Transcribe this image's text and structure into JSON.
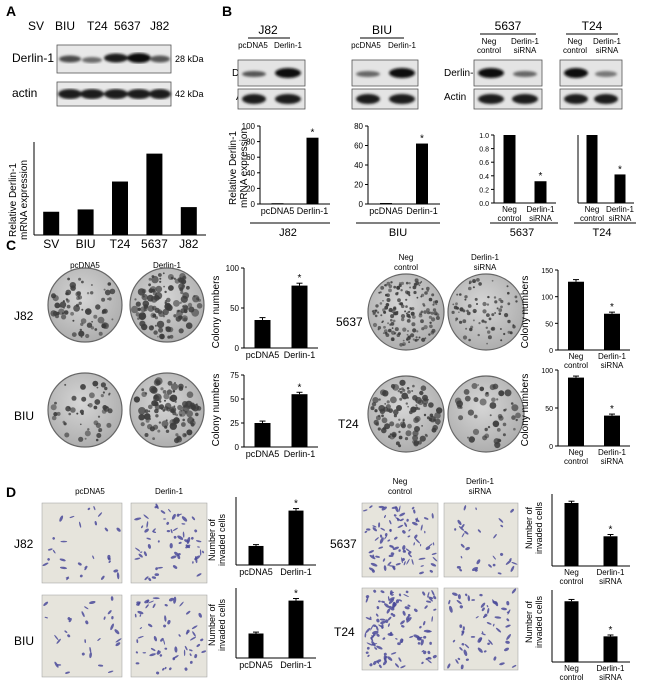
{
  "panels": {
    "A": {
      "label": "A",
      "lanes": [
        "SV",
        "BIU",
        "T24",
        "5637",
        "J82"
      ],
      "blot_rows": [
        "Derlin-1",
        "actin"
      ],
      "mw": [
        "28 kDa",
        "42 kDa"
      ],
      "ylabel": [
        "Relative Derlin-1",
        "mRNA  expression"
      ]
    },
    "B": {
      "label": "B",
      "groups": [
        {
          "name": "J82",
          "lanes": [
            "pcDNA5",
            "Derlin-1"
          ]
        },
        {
          "name": "BIU",
          "lanes": [
            "pcDNA5",
            "Derlin-1"
          ]
        },
        {
          "name": "5637",
          "lanes": [
            "Neg\ncontrol",
            "Derlin-1\nsiRNA"
          ]
        },
        {
          "name": "T24",
          "lanes": [
            "Neg\ncontrol",
            "Derlin-1\nsiRNA"
          ]
        }
      ],
      "blot_rows": [
        "Derlin-1",
        "Actin"
      ],
      "ylabel": [
        "Relative Derlin-1",
        "mRNA  expression"
      ]
    },
    "C": {
      "label": "C",
      "rows_left": [
        "J82",
        "BIU"
      ],
      "rows_right": [
        "5637",
        "T24"
      ],
      "cols_left": [
        "pcDNA5",
        "Derlin-1"
      ],
      "cols_right": [
        [
          "Neg",
          "control"
        ],
        [
          "Derlin-1",
          "siRNA"
        ]
      ],
      "ylabel": "Colony numbers"
    },
    "D": {
      "label": "D",
      "rows_left": [
        "J82",
        "BIU"
      ],
      "rows_right": [
        "5637",
        "T24"
      ],
      "cols_left": [
        "pcDNA5",
        "Derlin-1"
      ],
      "cols_right": [
        [
          "Neg",
          "control"
        ],
        [
          "Derlin-1",
          "siRNA"
        ]
      ],
      "ylabel": [
        "Number of",
        "invaded cells"
      ]
    }
  },
  "sig_marker": "*",
  "colors": {
    "bar": "#000000",
    "well": "#bdbdbd",
    "colony": "#3c3c3c",
    "cell": "#4a4a9a",
    "invasion_bg": "#e6e4dc"
  },
  "chart_data": [
    {
      "id": "A-qpcr",
      "type": "bar",
      "categories": [
        "SV",
        "BIU",
        "T24",
        "5637",
        "J82"
      ],
      "values": [
        1.0,
        1.1,
        2.3,
        3.5,
        1.2
      ],
      "ylim": [
        0,
        4
      ],
      "ylabel": "Relative Derlin-1 mRNA  expression"
    },
    {
      "id": "B-J82",
      "type": "bar",
      "categories": [
        "pcDNA5",
        "Derlin-1"
      ],
      "values": [
        1,
        85
      ],
      "ylim": [
        0,
        100
      ],
      "yticks": [
        0,
        20,
        40,
        60,
        80,
        100
      ],
      "group": "J82",
      "sig": [
        false,
        true
      ]
    },
    {
      "id": "B-BIU",
      "type": "bar",
      "categories": [
        "pcDNA5",
        "Derlin-1"
      ],
      "values": [
        1,
        62
      ],
      "ylim": [
        0,
        80
      ],
      "yticks": [
        0,
        20,
        40,
        60,
        80
      ],
      "group": "BIU",
      "sig": [
        false,
        true
      ]
    },
    {
      "id": "B-5637",
      "type": "bar",
      "categories": [
        "Neg\ncontrol",
        "Derlin-1\nsiRNA"
      ],
      "values": [
        1.0,
        0.32
      ],
      "ylim": [
        0,
        1.0
      ],
      "yticks": [
        0,
        0.2,
        0.4,
        0.6,
        0.8,
        1.0
      ],
      "group": "5637",
      "sig": [
        false,
        true
      ]
    },
    {
      "id": "B-T24",
      "type": "bar",
      "categories": [
        "Neg\ncontrol",
        "Derlin-1\nsiRNA"
      ],
      "values": [
        1.0,
        0.42
      ],
      "ylim": [
        0,
        1.0
      ],
      "group": "T24",
      "sig": [
        false,
        true
      ]
    },
    {
      "id": "C-J82",
      "type": "bar",
      "categories": [
        "pcDNA5",
        "Derlin-1"
      ],
      "values": [
        35,
        78
      ],
      "errors": [
        3,
        3
      ],
      "ylim": [
        0,
        100
      ],
      "yticks": [
        0,
        50,
        100
      ],
      "sig": [
        false,
        true
      ]
    },
    {
      "id": "C-BIU",
      "type": "bar",
      "categories": [
        "pcDNA5",
        "Derlin-1"
      ],
      "values": [
        25,
        55
      ],
      "errors": [
        2,
        2
      ],
      "ylim": [
        0,
        75
      ],
      "yticks": [
        0,
        25,
        50,
        75
      ],
      "sig": [
        false,
        true
      ]
    },
    {
      "id": "C-5637",
      "type": "bar",
      "categories": [
        "Neg\ncontrol",
        "Derlin-1\nsiRNA"
      ],
      "values": [
        128,
        68
      ],
      "errors": [
        4,
        3
      ],
      "ylim": [
        0,
        150
      ],
      "yticks": [
        0,
        50,
        100,
        150
      ],
      "sig": [
        false,
        true
      ]
    },
    {
      "id": "C-T24",
      "type": "bar",
      "categories": [
        "Neg\ncontrol",
        "Derlin-1\nsiRNA"
      ],
      "values": [
        90,
        40
      ],
      "errors": [
        2,
        2
      ],
      "ylim": [
        0,
        100
      ],
      "yticks": [
        0,
        50,
        100
      ],
      "sig": [
        false,
        true
      ]
    },
    {
      "id": "D-J82",
      "type": "bar",
      "categories": [
        "pcDNA5",
        "Derlin-1"
      ],
      "values": [
        28,
        80
      ],
      "errors": [
        2,
        3
      ],
      "ylim": [
        0,
        100
      ],
      "sig": [
        false,
        true
      ]
    },
    {
      "id": "D-BIU",
      "type": "bar",
      "categories": [
        "pcDNA5",
        "Derlin-1"
      ],
      "values": [
        35,
        82
      ],
      "errors": [
        2,
        3
      ],
      "ylim": [
        0,
        100
      ],
      "sig": [
        false,
        true
      ]
    },
    {
      "id": "D-5637",
      "type": "bar",
      "categories": [
        "Neg\ncontrol",
        "Derlin-1\nsiRNA"
      ],
      "values": [
        70,
        33
      ],
      "errors": [
        2,
        2
      ],
      "ylim": [
        0,
        80
      ],
      "sig": [
        false,
        true
      ]
    },
    {
      "id": "D-T24",
      "type": "bar",
      "categories": [
        "Neg\ncontrol",
        "Derlin-1\nsiRNA"
      ],
      "values": [
        135,
        57
      ],
      "errors": [
        4,
        3
      ],
      "ylim": [
        0,
        160
      ],
      "sig": [
        false,
        true
      ]
    }
  ]
}
